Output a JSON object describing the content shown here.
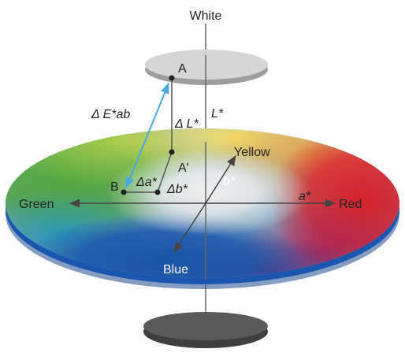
{
  "labels": {
    "white": "White",
    "yellow": "Yellow",
    "green": "Green",
    "red": "Red",
    "blue": "Blue",
    "point_a": "A",
    "point_a_prime": "A'",
    "point_b": "B",
    "l_star": "L*",
    "a_star": "a*",
    "b_star": "b*",
    "delta_e": "Δ E*ab",
    "delta_l": "Δ L*",
    "delta_a": "Δa*",
    "delta_b": "Δb*"
  },
  "colors": {
    "top_disc": "#d9d9d9",
    "bottom_disc": "#4a4a4a",
    "axis": "#555555",
    "delta_e_arrow": "#4aa8e0",
    "yellow": "#f7d64a",
    "green": "#7cc242",
    "red": "#e8323c",
    "blue": "#2a6fc9"
  }
}
